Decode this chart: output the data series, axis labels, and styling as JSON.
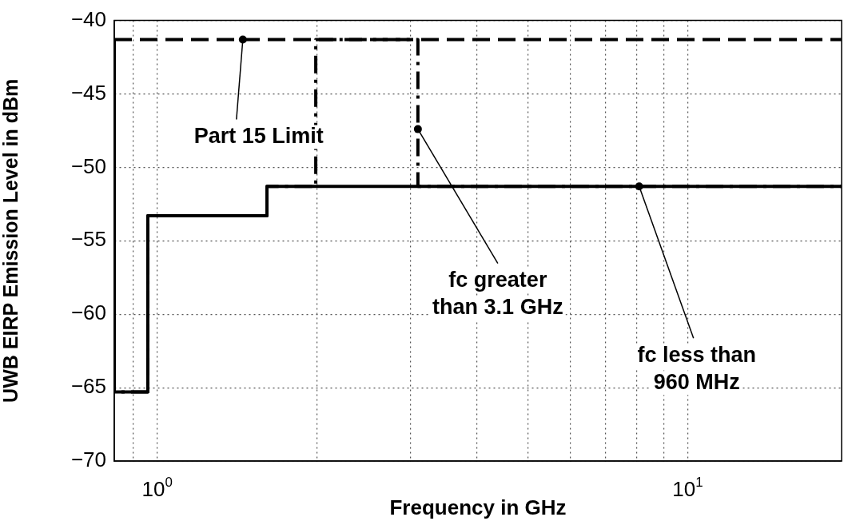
{
  "chart_data": {
    "type": "step",
    "xlabel": "Frequency in GHz",
    "ylabel": "UWB EIRP Emission Level in dBm",
    "log": "x",
    "grid": true,
    "legend": false,
    "marker": "none",
    "xlim": [
      0.83,
      19.5
    ],
    "ylim": [
      -70,
      -40
    ],
    "xticks": [
      {
        "value": 0.9,
        "label": null
      },
      {
        "value": 1,
        "label": "10$^{0}$"
      },
      {
        "value": 2,
        "label": null
      },
      {
        "value": 3,
        "label": null
      },
      {
        "value": 4,
        "label": null
      },
      {
        "value": 5,
        "label": null
      },
      {
        "value": 6,
        "label": null
      },
      {
        "value": 7,
        "label": null
      },
      {
        "value": 8,
        "label": null
      },
      {
        "value": 9,
        "label": null
      },
      {
        "value": 10,
        "label": "10$^{1}$"
      }
    ],
    "yticks": [
      {
        "value": -70,
        "label": "−70"
      },
      {
        "value": -65,
        "label": "−65"
      },
      {
        "value": -60,
        "label": "−60"
      },
      {
        "value": -55,
        "label": "−55"
      },
      {
        "value": -50,
        "label": "−50"
      },
      {
        "value": -45,
        "label": "−45"
      },
      {
        "value": -40,
        "label": "−40"
      }
    ],
    "series": [
      {
        "color": "#000000",
        "line_style": "dashed",
        "x": [
          0.83,
          19.5
        ],
        "values": [
          -41.3,
          -41.3
        ]
      },
      {
        "color": "#000000",
        "line_style": "dashdot",
        "x": [
          0.83,
          0.96,
          1.61,
          1.99,
          3.1,
          10.6,
          19.5
        ],
        "values": [
          -41.3,
          -65.3,
          -53.3,
          -51.3,
          -41.3,
          -51.3,
          -51.3
        ]
      },
      {
        "color": "#000000",
        "line_style": "solid",
        "x": [
          0.83,
          0.96,
          1.61,
          1.99,
          19.5
        ],
        "values": [
          -41.3,
          -65.3,
          -53.3,
          -51.3,
          -51.3
        ]
      }
    ],
    "annotations": [
      {
        "text": "Part 15 Limit",
        "x": 1.45,
        "y": -41.3
      },
      {
        "text": "fc greater\nthan 3.1 GHz",
        "x": 3.1,
        "y": -47.4
      },
      {
        "text": "fc less than\n960 MHz",
        "x": 8.1,
        "y": -51.3
      }
    ]
  }
}
